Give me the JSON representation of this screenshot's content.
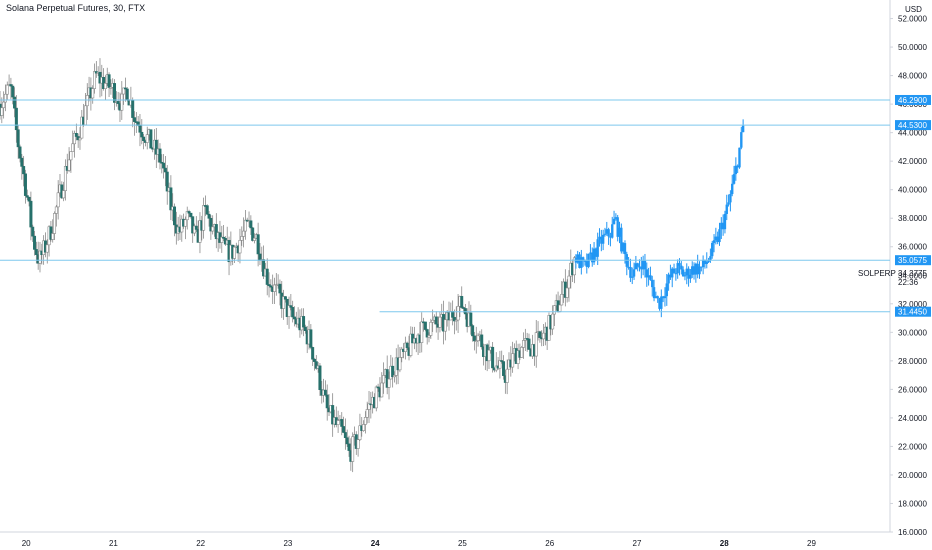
{
  "chart_title": "Solana Perpetual Futures, 30, FTX",
  "currency": "USD",
  "symbol": "SOLPERP",
  "last_price": "34.3775",
  "countdown": "22:36",
  "colors": {
    "hist_up_fill": "#ffffff",
    "hist_stroke": "#8a8a8a",
    "hist_down_fill": "#26706b",
    "projection": "#2196f3",
    "hline": "#7ec8ee",
    "label_bg": "#2196f3",
    "grid_text": "#131722",
    "axis_line": "#d1d4dc"
  },
  "chart_data": {
    "type": "candlestick",
    "title": "Solana Perpetual Futures, 30, FTX",
    "x_ticks": [
      "20",
      "21",
      "22",
      "23",
      "24",
      "25",
      "26",
      "27",
      "28",
      "29"
    ],
    "y_ticks": [
      "16.0000",
      "18.0000",
      "20.0000",
      "22.0000",
      "24.0000",
      "26.0000",
      "28.0000",
      "30.0000",
      "32.0000",
      "34.0000",
      "36.0000",
      "38.0000",
      "40.0000",
      "42.0000",
      "44.0000",
      "46.0000",
      "48.0000",
      "50.0000",
      "52.0000"
    ],
    "ylim": [
      16,
      53.3
    ],
    "xlim": [
      19.7,
      29.9
    ],
    "horizontal_lines": [
      {
        "price": 46.29,
        "label": "46.2900",
        "start_day": 19.7
      },
      {
        "price": 44.53,
        "label": "44.5300",
        "start_day": 19.7
      },
      {
        "price": 35.0575,
        "label": "35.0575",
        "start_day": 19.7
      },
      {
        "price": 31.445,
        "label": "31.4450",
        "start_day": 24.05
      }
    ],
    "historical_path": [
      [
        19.7,
        46.0
      ],
      [
        19.82,
        47.2
      ],
      [
        19.9,
        43.5
      ],
      [
        20.0,
        40.0
      ],
      [
        20.08,
        36.5
      ],
      [
        20.15,
        35.0
      ],
      [
        20.22,
        36.0
      ],
      [
        20.3,
        37.5
      ],
      [
        20.4,
        40.0
      ],
      [
        20.5,
        42.5
      ],
      [
        20.6,
        44.0
      ],
      [
        20.7,
        46.0
      ],
      [
        20.8,
        48.0
      ],
      [
        20.9,
        47.5
      ],
      [
        21.0,
        47.0
      ],
      [
        21.1,
        46.0
      ],
      [
        21.15,
        47.2
      ],
      [
        21.25,
        45.0
      ],
      [
        21.35,
        44.0
      ],
      [
        21.45,
        43.0
      ],
      [
        21.55,
        42.0
      ],
      [
        21.65,
        39.0
      ],
      [
        21.75,
        37.0
      ],
      [
        21.85,
        38.0
      ],
      [
        21.95,
        36.5
      ],
      [
        22.05,
        38.5
      ],
      [
        22.15,
        37.0
      ],
      [
        22.25,
        36.0
      ],
      [
        22.35,
        35.5
      ],
      [
        22.45,
        36.5
      ],
      [
        22.55,
        37.5
      ],
      [
        22.65,
        36.5
      ],
      [
        22.75,
        34.0
      ],
      [
        22.85,
        33.0
      ],
      [
        22.95,
        32.0
      ],
      [
        23.05,
        31.0
      ],
      [
        23.15,
        30.5
      ],
      [
        23.25,
        29.5
      ],
      [
        23.35,
        27.0
      ],
      [
        23.45,
        24.5
      ],
      [
        23.55,
        23.5
      ],
      [
        23.62,
        23.0
      ],
      [
        23.7,
        21.5
      ],
      [
        23.8,
        22.5
      ],
      [
        23.9,
        24.5
      ],
      [
        24.0,
        25.5
      ],
      [
        24.1,
        26.5
      ],
      [
        24.2,
        27.5
      ],
      [
        24.35,
        28.5
      ],
      [
        24.5,
        30.0
      ],
      [
        24.65,
        30.5
      ],
      [
        24.8,
        30.5
      ],
      [
        24.9,
        31.5
      ],
      [
        25.0,
        32.0
      ],
      [
        25.1,
        30.5
      ],
      [
        25.2,
        29.5
      ],
      [
        25.3,
        28.5
      ],
      [
        25.4,
        27.5
      ],
      [
        25.5,
        27.0
      ],
      [
        25.6,
        28.5
      ],
      [
        25.7,
        29.0
      ],
      [
        25.8,
        29.0
      ],
      [
        25.9,
        29.5
      ],
      [
        26.0,
        30.5
      ],
      [
        26.1,
        32.0
      ],
      [
        26.2,
        33.5
      ],
      [
        26.3,
        35.5
      ]
    ],
    "projection_path": [
      [
        26.3,
        35.2
      ],
      [
        26.4,
        34.5
      ],
      [
        26.5,
        35.5
      ],
      [
        26.6,
        36.5
      ],
      [
        26.7,
        37.0
      ],
      [
        26.75,
        38.0
      ],
      [
        26.85,
        35.5
      ],
      [
        26.95,
        34.0
      ],
      [
        27.05,
        35.0
      ],
      [
        27.15,
        33.5
      ],
      [
        27.25,
        32.0
      ],
      [
        27.35,
        33.5
      ],
      [
        27.45,
        34.5
      ],
      [
        27.55,
        34.0
      ],
      [
        27.65,
        34.5
      ],
      [
        27.75,
        34.5
      ],
      [
        27.85,
        35.5
      ],
      [
        27.95,
        37.0
      ],
      [
        28.05,
        39.0
      ],
      [
        28.12,
        41.0
      ],
      [
        28.18,
        43.0
      ],
      [
        28.22,
        44.5
      ]
    ]
  }
}
